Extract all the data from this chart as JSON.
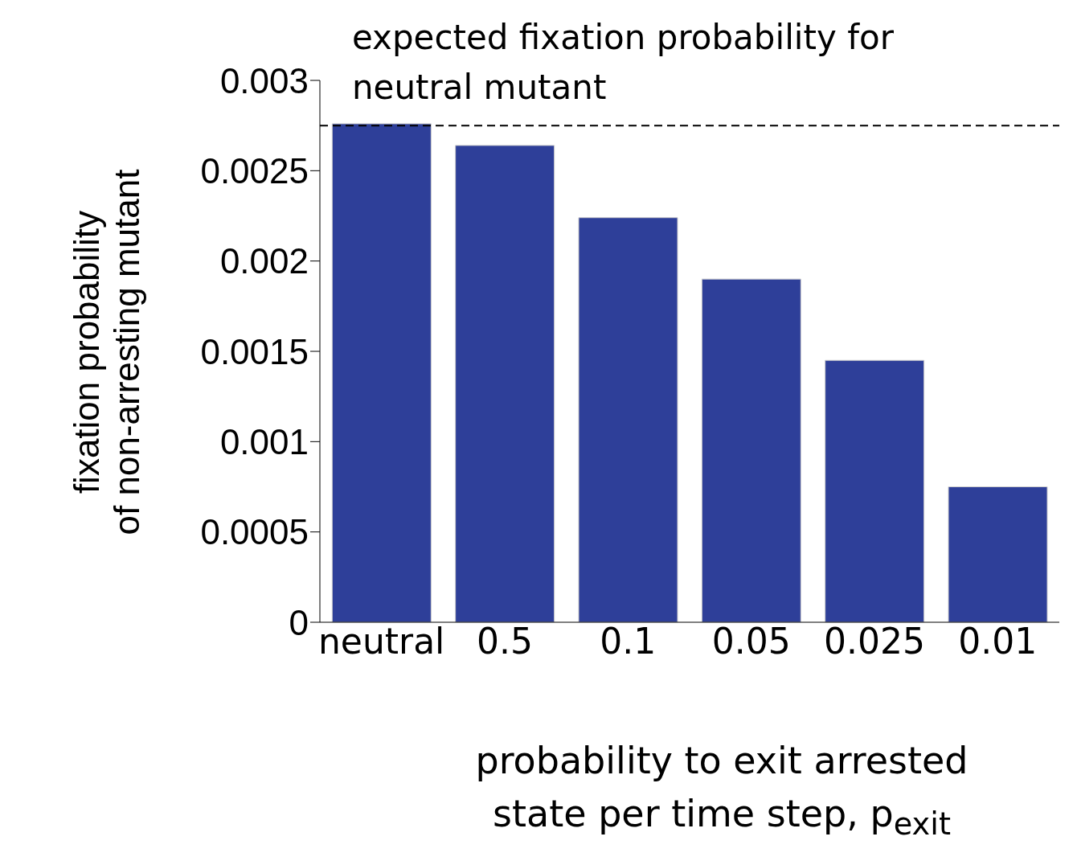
{
  "chart_data": {
    "type": "bar",
    "xlabel": "probability to exit arrested\nstate per time step, p$_{exit}$",
    "ylabel": "fixation probability\nof non-arresting mutant",
    "categories": [
      "neutral",
      "0.5",
      "0.1",
      "0.05",
      "0.025",
      "0.01"
    ],
    "values": [
      0.00276,
      0.00264,
      0.00224,
      0.0019,
      0.00145,
      0.00075
    ],
    "color": "#2e3f99",
    "ylim": [
      0,
      0.003
    ],
    "yticks": [
      0,
      0.0005,
      0.001,
      0.0015,
      0.002,
      0.0025,
      0.003
    ],
    "ref_lines": [
      {
        "axis": "y",
        "value": 0.00275,
        "label": "expected fixation probability for\nneutral mutant",
        "line_style": "dashed",
        "color": "#000000"
      }
    ],
    "marker": "none"
  }
}
